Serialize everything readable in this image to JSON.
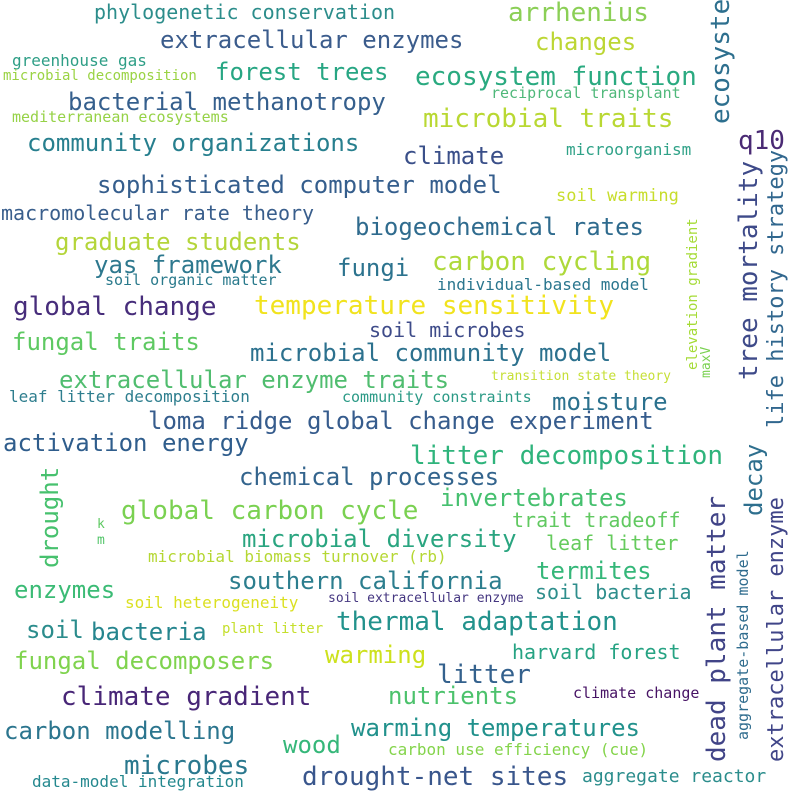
{
  "words": [
    {
      "text": "phylogenetic conservation",
      "color": "#2c8d8b"
    },
    {
      "text": "arrhenius",
      "color": "#8bcf56"
    },
    {
      "text": "extracellular enzymes",
      "color": "#3b5c8c"
    },
    {
      "text": "changes",
      "color": "#bcd633"
    },
    {
      "text": "greenhouse gas",
      "color": "#2e9e86"
    },
    {
      "text": "microbial decomposition",
      "color": "#9ad344"
    },
    {
      "text": "forest trees",
      "color": "#27a683"
    },
    {
      "text": "ecosystem function",
      "color": "#2aaa80"
    },
    {
      "text": "reciprocal transplant",
      "color": "#4fb87a"
    },
    {
      "text": "bacterial methanotropy",
      "color": "#355f8d"
    },
    {
      "text": "mediterranean ecosystems",
      "color": "#96d247"
    },
    {
      "text": "microbial traits",
      "color": "#b9d833"
    },
    {
      "text": "community organizations",
      "color": "#277f8e"
    },
    {
      "text": "climate",
      "color": "#3a4f89"
    },
    {
      "text": "microorganism",
      "color": "#30a288"
    },
    {
      "text": "q10",
      "color": "#4a2a74"
    },
    {
      "text": "sophisticated computer model",
      "color": "#355e8d"
    },
    {
      "text": "soil warming",
      "color": "#c7dd2b"
    },
    {
      "text": "macromolecular rate theory",
      "color": "#395e8c"
    },
    {
      "text": "biogeochemical rates",
      "color": "#2f6b8e"
    },
    {
      "text": "graduate students",
      "color": "#b4d53a"
    },
    {
      "text": "yas framework",
      "color": "#2d788e"
    },
    {
      "text": "fungi",
      "color": "#2c738e"
    },
    {
      "text": "carbon cycling",
      "color": "#aed93a"
    },
    {
      "text": "soil organic matter",
      "color": "#2a7a8c"
    },
    {
      "text": "individual-based model",
      "color": "#2a768e"
    },
    {
      "text": "global change",
      "color": "#472d7b"
    },
    {
      "text": "temperature sensitivity",
      "color": "#f1e31e"
    },
    {
      "text": "soil microbes",
      "color": "#3e4b89"
    },
    {
      "text": "fungal traits",
      "color": "#5ec962"
    },
    {
      "text": "microbial community model",
      "color": "#2c718e"
    },
    {
      "text": "extracellular enzyme traits",
      "color": "#50bd6f"
    },
    {
      "text": "transition state theory",
      "color": "#c6df36"
    },
    {
      "text": "leaf litter decomposition",
      "color": "#2e7e8e"
    },
    {
      "text": "community constraints",
      "color": "#2b9a86"
    },
    {
      "text": "moisture",
      "color": "#2b718e"
    },
    {
      "text": "loma ridge global change experiment",
      "color": "#365c8d"
    },
    {
      "text": "activation energy",
      "color": "#2f5d8c"
    },
    {
      "text": "litter decomposition",
      "color": "#2fb47c"
    },
    {
      "text": "chemical processes",
      "color": "#33648d"
    },
    {
      "text": "invertebrates",
      "color": "#46c06f"
    },
    {
      "text": "global carbon cycle",
      "color": "#7ad151"
    },
    {
      "text": "microbial diversity",
      "color": "#2aa580"
    },
    {
      "text": "trait tradeoff",
      "color": "#61c961"
    },
    {
      "text": "leaf litter",
      "color": "#66cb5d"
    },
    {
      "text": "microbial biomass turnover (rb)",
      "color": "#b5d733"
    },
    {
      "text": "southern california",
      "color": "#2c7e8e"
    },
    {
      "text": "termites",
      "color": "#35b779"
    },
    {
      "text": "enzymes",
      "color": "#3bbb75"
    },
    {
      "text": "soil bacteria",
      "color": "#2e8e8c"
    },
    {
      "text": "soil heterogeneity",
      "color": "#dbe022"
    },
    {
      "text": "soil extracellular enzyme",
      "color": "#453781"
    },
    {
      "text": "soil",
      "color": "#2b8c8c"
    },
    {
      "text": "bacteria",
      "color": "#25858e"
    },
    {
      "text": "plant litter",
      "color": "#c5df2c"
    },
    {
      "text": "thermal adaptation",
      "color": "#22928c"
    },
    {
      "text": "fungal decomposers",
      "color": "#7fd34e"
    },
    {
      "text": "warming",
      "color": "#cde11d"
    },
    {
      "text": "harvard forest",
      "color": "#26a383"
    },
    {
      "text": "litter",
      "color": "#34618d"
    },
    {
      "text": "climate gradient",
      "color": "#482677"
    },
    {
      "text": "nutrients",
      "color": "#4cc26c"
    },
    {
      "text": "climate change",
      "color": "#471365"
    },
    {
      "text": "carbon modelling",
      "color": "#2b758e"
    },
    {
      "text": "warming temperatures",
      "color": "#21918c"
    },
    {
      "text": "wood",
      "color": "#35b779"
    },
    {
      "text": "carbon use efficiency (cue)",
      "color": "#84d44b"
    },
    {
      "text": "microbes",
      "color": "#2a788e"
    },
    {
      "text": "data-model integration",
      "color": "#24888e"
    },
    {
      "text": "drought-net sites",
      "color": "#39568c"
    },
    {
      "text": "aggregate reactor",
      "color": "#2b8d8c"
    },
    {
      "text": "ecosystem process",
      "color": "#2d6f8e"
    },
    {
      "text": "tree mortality",
      "color": "#3e4a89"
    },
    {
      "text": "life history strategy",
      "color": "#31678e"
    },
    {
      "text": "elevation gradient",
      "color": "#a5db36"
    },
    {
      "text": "maxV",
      "color": "#7ad151"
    },
    {
      "text": "decay",
      "color": "#2e6f8e"
    },
    {
      "text": "dead plant matter",
      "color": "#414487"
    },
    {
      "text": "extracellular enzyme",
      "color": "#404588"
    },
    {
      "text": "aggregate-based model",
      "color": "#2f6c8e"
    },
    {
      "text": "drought",
      "color": "#47c16e"
    },
    {
      "text": "k",
      "color": "#5ec962"
    },
    {
      "text": "m",
      "color": "#52c569"
    }
  ]
}
